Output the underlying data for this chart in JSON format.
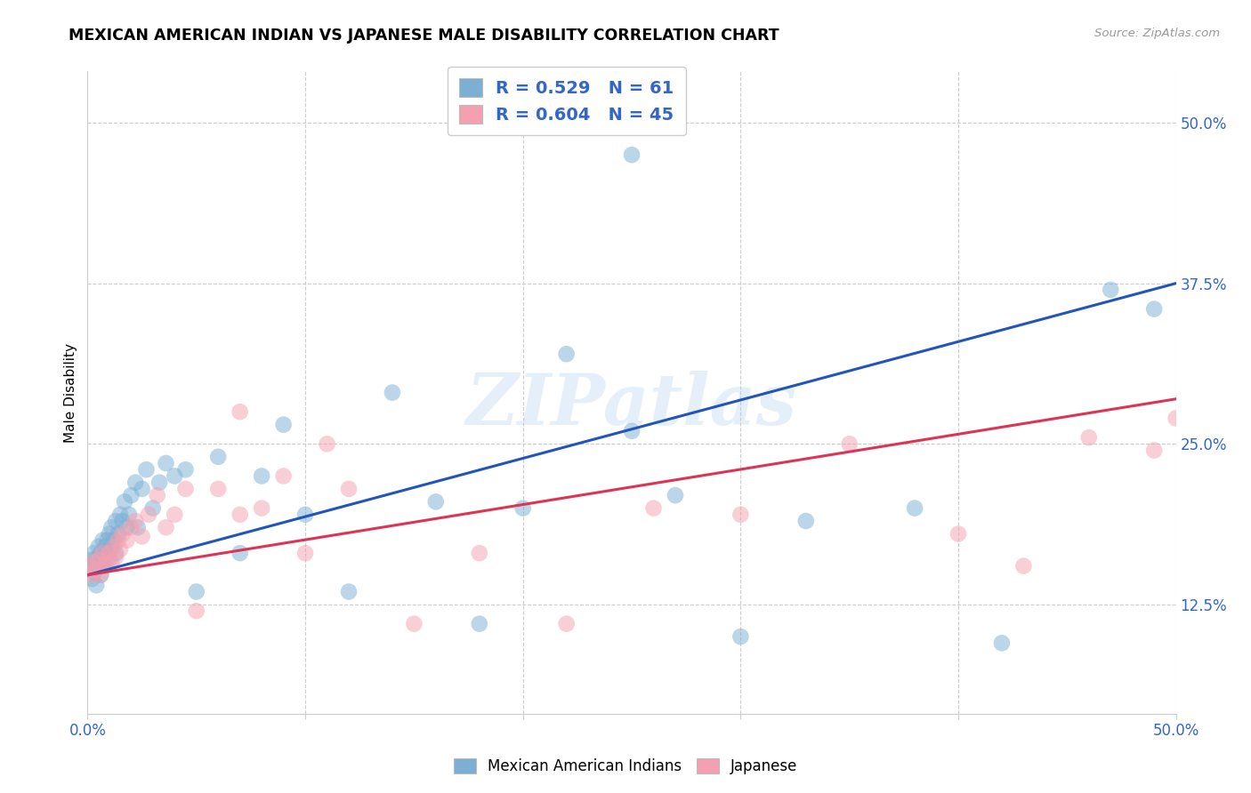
{
  "title": "MEXICAN AMERICAN INDIAN VS JAPANESE MALE DISABILITY CORRELATION CHART",
  "source": "Source: ZipAtlas.com",
  "ylabel": "Male Disability",
  "xlim": [
    0.0,
    0.5
  ],
  "ylim": [
    0.04,
    0.54
  ],
  "ytick_values": [
    0.125,
    0.25,
    0.375,
    0.5
  ],
  "ytick_labels": [
    "12.5%",
    "25.0%",
    "37.5%",
    "50.0%"
  ],
  "xtick_positions": [
    0.0,
    0.1,
    0.2,
    0.3,
    0.4,
    0.5
  ],
  "xtick_labels": [
    "0.0%",
    "",
    "",
    "",
    "",
    "50.0%"
  ],
  "blue_color": "#7BAFD4",
  "pink_color": "#F4A0B0",
  "blue_line_color": "#2255BB",
  "pink_line_color": "#DD3355",
  "watermark": "ZIPatlas",
  "legend_blue_r": "0.529",
  "legend_blue_n": "61",
  "legend_pink_r": "0.604",
  "legend_pink_n": "45",
  "blue_line_x0": 0.0,
  "blue_line_y0": 0.148,
  "blue_line_x1": 0.5,
  "blue_line_y1": 0.375,
  "pink_line_x0": 0.0,
  "pink_line_y0": 0.148,
  "pink_line_x1": 0.5,
  "pink_line_y1": 0.285,
  "blue_x": [
    0.001,
    0.002,
    0.002,
    0.003,
    0.003,
    0.004,
    0.004,
    0.005,
    0.005,
    0.006,
    0.006,
    0.007,
    0.007,
    0.008,
    0.008,
    0.009,
    0.009,
    0.01,
    0.01,
    0.011,
    0.011,
    0.012,
    0.013,
    0.013,
    0.014,
    0.015,
    0.016,
    0.017,
    0.018,
    0.019,
    0.02,
    0.022,
    0.023,
    0.025,
    0.027,
    0.03,
    0.033,
    0.036,
    0.04,
    0.045,
    0.05,
    0.06,
    0.07,
    0.08,
    0.09,
    0.1,
    0.12,
    0.14,
    0.16,
    0.18,
    0.2,
    0.22,
    0.25,
    0.27,
    0.3,
    0.33,
    0.38,
    0.42,
    0.47,
    0.49,
    0.25
  ],
  "blue_y": [
    0.155,
    0.145,
    0.16,
    0.15,
    0.165,
    0.14,
    0.16,
    0.155,
    0.17,
    0.148,
    0.165,
    0.158,
    0.175,
    0.16,
    0.17,
    0.165,
    0.175,
    0.16,
    0.18,
    0.17,
    0.185,
    0.175,
    0.165,
    0.19,
    0.18,
    0.195,
    0.19,
    0.205,
    0.185,
    0.195,
    0.21,
    0.22,
    0.185,
    0.215,
    0.23,
    0.2,
    0.22,
    0.235,
    0.225,
    0.23,
    0.135,
    0.24,
    0.165,
    0.225,
    0.265,
    0.195,
    0.135,
    0.29,
    0.205,
    0.11,
    0.2,
    0.32,
    0.26,
    0.21,
    0.1,
    0.19,
    0.2,
    0.095,
    0.37,
    0.355,
    0.475
  ],
  "pink_x": [
    0.001,
    0.002,
    0.003,
    0.004,
    0.005,
    0.006,
    0.007,
    0.008,
    0.009,
    0.01,
    0.011,
    0.012,
    0.013,
    0.014,
    0.015,
    0.016,
    0.018,
    0.02,
    0.022,
    0.025,
    0.028,
    0.032,
    0.036,
    0.04,
    0.045,
    0.05,
    0.06,
    0.07,
    0.08,
    0.09,
    0.1,
    0.12,
    0.15,
    0.18,
    0.22,
    0.26,
    0.3,
    0.35,
    0.4,
    0.43,
    0.46,
    0.49,
    0.5,
    0.07,
    0.11
  ],
  "pink_y": [
    0.155,
    0.148,
    0.158,
    0.152,
    0.16,
    0.148,
    0.165,
    0.155,
    0.16,
    0.165,
    0.158,
    0.17,
    0.162,
    0.175,
    0.168,
    0.18,
    0.175,
    0.185,
    0.19,
    0.178,
    0.195,
    0.21,
    0.185,
    0.195,
    0.215,
    0.12,
    0.215,
    0.195,
    0.2,
    0.225,
    0.165,
    0.215,
    0.11,
    0.165,
    0.11,
    0.2,
    0.195,
    0.25,
    0.18,
    0.155,
    0.255,
    0.245,
    0.27,
    0.275,
    0.25
  ]
}
